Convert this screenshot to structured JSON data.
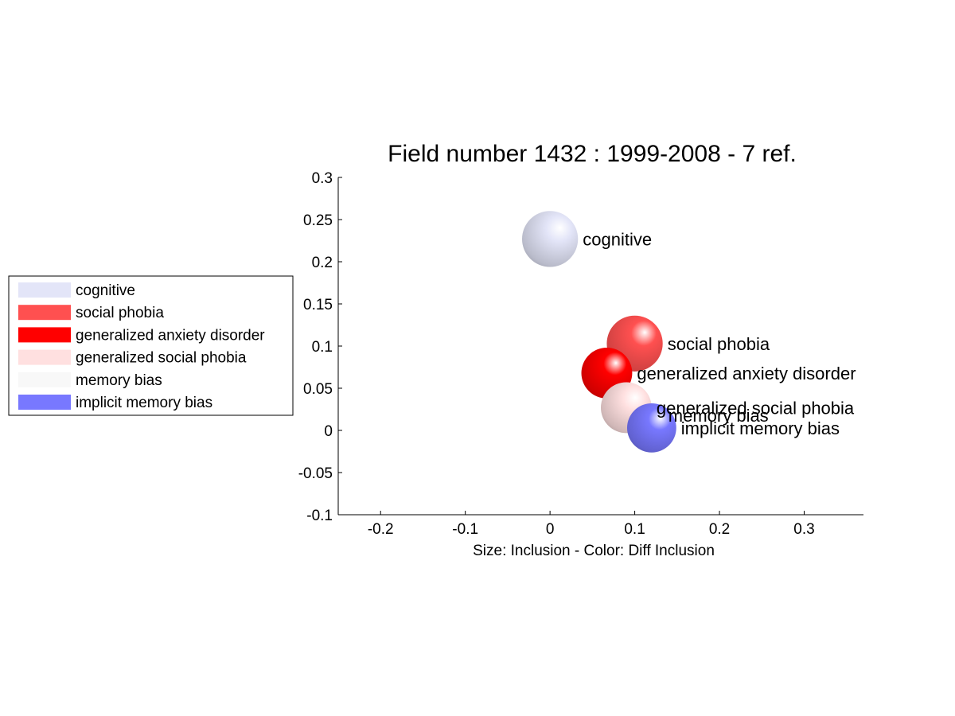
{
  "chart_data": {
    "type": "scatter",
    "title": "Field number 1432 : 1999-2008  - 7 ref.",
    "xlabel": "Size: Inclusion - Color: Diff Inclusion",
    "ylabel": "",
    "xlim": [
      -0.25,
      0.37
    ],
    "ylim": [
      -0.1,
      0.3
    ],
    "xticks": [
      -0.2,
      -0.1,
      0,
      0.1,
      0.2,
      0.3
    ],
    "xtick_labels": [
      "-0.2",
      "-0.1",
      "0",
      "0.1",
      "0.2",
      "0.3"
    ],
    "yticks": [
      0.3,
      0.25,
      0.2,
      0.15,
      0.1,
      0.05,
      0,
      -0.05,
      -0.1
    ],
    "ytick_labels": [
      "0.3",
      "0.25",
      "0.2",
      "0.15",
      "0.1",
      "0.05",
      "0",
      "-0.05",
      "-0.1"
    ],
    "grid": false,
    "legend_position": "left",
    "points": [
      {
        "label": "cognitive",
        "x": 0.0,
        "y": 0.227,
        "size": 0.033,
        "color": "#e3e5f8"
      },
      {
        "label": "social phobia",
        "x": 0.1,
        "y": 0.103,
        "size": 0.033,
        "color": "#ff5050"
      },
      {
        "label": "generalized anxiety disorder",
        "x": 0.067,
        "y": 0.068,
        "size": 0.03,
        "color": "#ff0000"
      },
      {
        "label": "generalized social phobia",
        "x": 0.09,
        "y": 0.027,
        "size": 0.03,
        "color": "#ffe0e0"
      },
      {
        "label": "memory bias",
        "x": 0.12,
        "y": 0.018,
        "size": 0.014,
        "color": "#f8f8f8"
      },
      {
        "label": "implicit memory bias",
        "x": 0.12,
        "y": 0.003,
        "size": 0.029,
        "color": "#7878ff"
      }
    ]
  }
}
